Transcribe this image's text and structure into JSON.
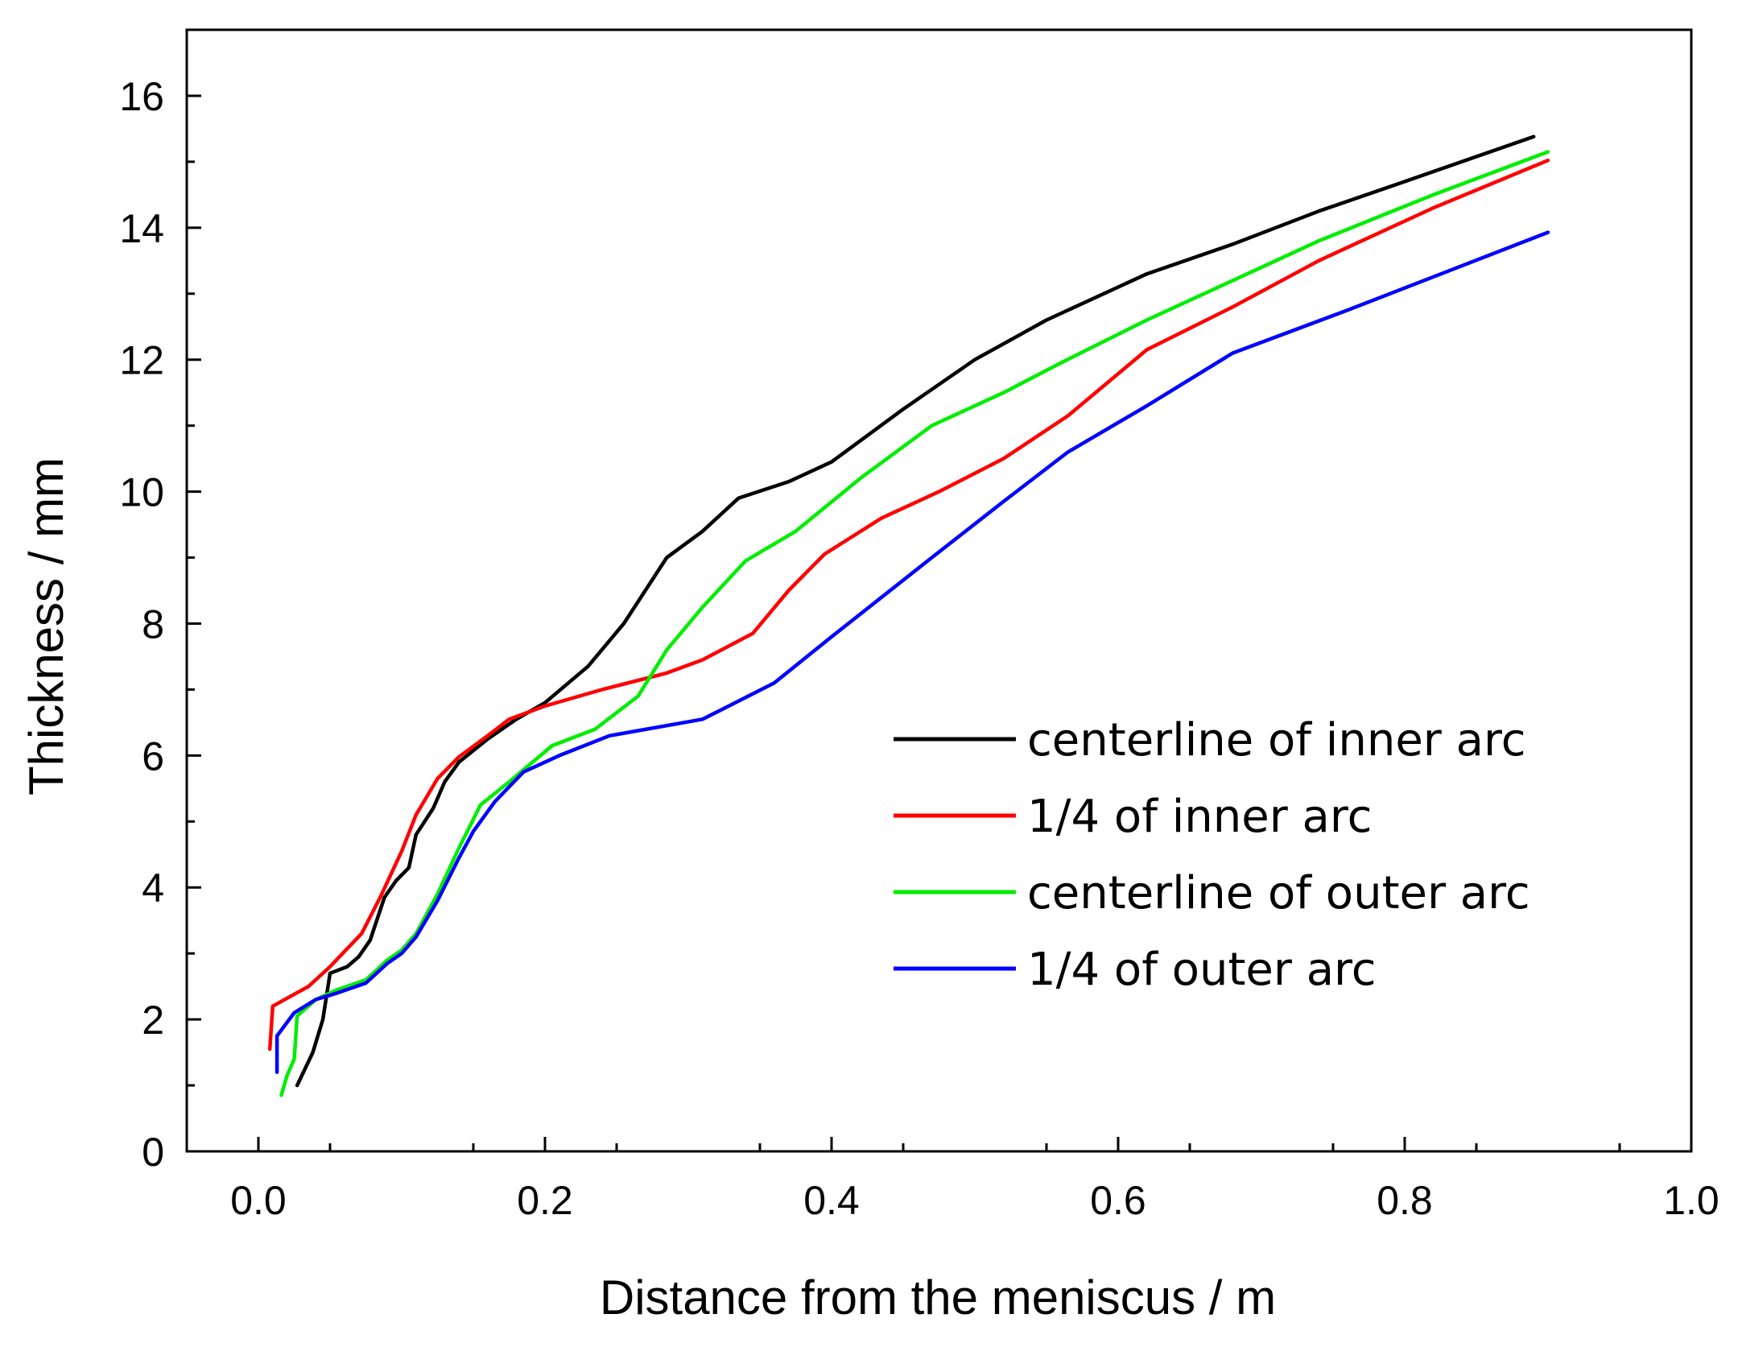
{
  "chart_data": {
    "type": "line",
    "title": "",
    "xlabel": "Distance from the meniscus / m",
    "ylabel": "Thickness / mm",
    "xlim": [
      -0.05,
      1.0
    ],
    "ylim": [
      0,
      17
    ],
    "xticks": [
      0.0,
      0.2,
      0.4,
      0.6,
      0.8,
      1.0
    ],
    "xtick_labels": [
      "0.0",
      "0.2",
      "0.4",
      "0.6",
      "0.8",
      "1.0"
    ],
    "xminor_ticks": [
      -0.05,
      0.05,
      0.15,
      0.25,
      0.35,
      0.45,
      0.55,
      0.65,
      0.75,
      0.85,
      0.95
    ],
    "yticks": [
      0,
      2,
      4,
      6,
      8,
      10,
      12,
      14,
      16
    ],
    "ytick_labels": [
      "0",
      "2",
      "4",
      "6",
      "8",
      "10",
      "12",
      "14",
      "16"
    ],
    "yminor_ticks": [
      1,
      3,
      5,
      7,
      9,
      11,
      13,
      15
    ],
    "grid": false,
    "legend_position": "center-right",
    "series": [
      {
        "name": "centerline of inner arc",
        "color": "#000000",
        "x": [
          0.027,
          0.038,
          0.045,
          0.05,
          0.062,
          0.07,
          0.078,
          0.088,
          0.096,
          0.105,
          0.11,
          0.122,
          0.13,
          0.14,
          0.16,
          0.18,
          0.2,
          0.23,
          0.255,
          0.285,
          0.31,
          0.335,
          0.37,
          0.4,
          0.45,
          0.5,
          0.55,
          0.62,
          0.68,
          0.74,
          0.8,
          0.89
        ],
        "y": [
          1.0,
          1.5,
          2.0,
          2.7,
          2.8,
          2.95,
          3.2,
          3.85,
          4.1,
          4.3,
          4.8,
          5.2,
          5.6,
          5.9,
          6.25,
          6.55,
          6.8,
          7.35,
          8.0,
          9.0,
          9.4,
          9.9,
          10.15,
          10.45,
          11.25,
          12.0,
          12.6,
          13.3,
          13.75,
          14.25,
          14.7,
          15.38
        ]
      },
      {
        "name": "1/4 of inner arc",
        "color": "#ff0000",
        "x": [
          0.008,
          0.01,
          0.035,
          0.05,
          0.072,
          0.085,
          0.1,
          0.11,
          0.125,
          0.14,
          0.16,
          0.175,
          0.2,
          0.24,
          0.285,
          0.31,
          0.345,
          0.37,
          0.395,
          0.435,
          0.475,
          0.52,
          0.565,
          0.62,
          0.68,
          0.74,
          0.82,
          0.9
        ],
        "y": [
          1.55,
          2.2,
          2.5,
          2.8,
          3.3,
          3.85,
          4.55,
          5.1,
          5.65,
          5.98,
          6.3,
          6.55,
          6.75,
          7.0,
          7.25,
          7.45,
          7.85,
          8.5,
          9.05,
          9.6,
          10.0,
          10.5,
          11.15,
          12.15,
          12.8,
          13.5,
          14.3,
          15.02
        ]
      },
      {
        "name": "centerline of outer arc",
        "color": "#00ee00",
        "x": [
          0.016,
          0.02,
          0.025,
          0.027,
          0.04,
          0.055,
          0.075,
          0.09,
          0.1,
          0.11,
          0.125,
          0.14,
          0.155,
          0.175,
          0.205,
          0.235,
          0.265,
          0.285,
          0.31,
          0.34,
          0.375,
          0.42,
          0.47,
          0.52,
          0.56,
          0.62,
          0.68,
          0.74,
          0.82,
          0.9
        ],
        "y": [
          0.85,
          1.15,
          1.4,
          2.05,
          2.3,
          2.45,
          2.6,
          2.9,
          3.05,
          3.3,
          3.9,
          4.6,
          5.25,
          5.6,
          6.15,
          6.4,
          6.9,
          7.6,
          8.25,
          8.95,
          9.4,
          10.2,
          11.0,
          11.5,
          11.95,
          12.6,
          13.2,
          13.8,
          14.5,
          15.15
        ]
      },
      {
        "name": "1/4 of outer arc",
        "color": "#0000ff",
        "x": [
          0.013,
          0.013,
          0.025,
          0.04,
          0.055,
          0.075,
          0.09,
          0.1,
          0.11,
          0.125,
          0.14,
          0.15,
          0.165,
          0.185,
          0.21,
          0.245,
          0.31,
          0.36,
          0.4,
          0.47,
          0.52,
          0.565,
          0.62,
          0.68,
          0.76,
          0.9
        ],
        "y": [
          1.2,
          1.75,
          2.1,
          2.3,
          2.4,
          2.55,
          2.85,
          3.0,
          3.25,
          3.8,
          4.45,
          4.85,
          5.3,
          5.75,
          6.0,
          6.3,
          6.55,
          7.1,
          7.8,
          9.0,
          9.85,
          10.6,
          11.3,
          12.1,
          12.75,
          13.93
        ]
      }
    ]
  }
}
